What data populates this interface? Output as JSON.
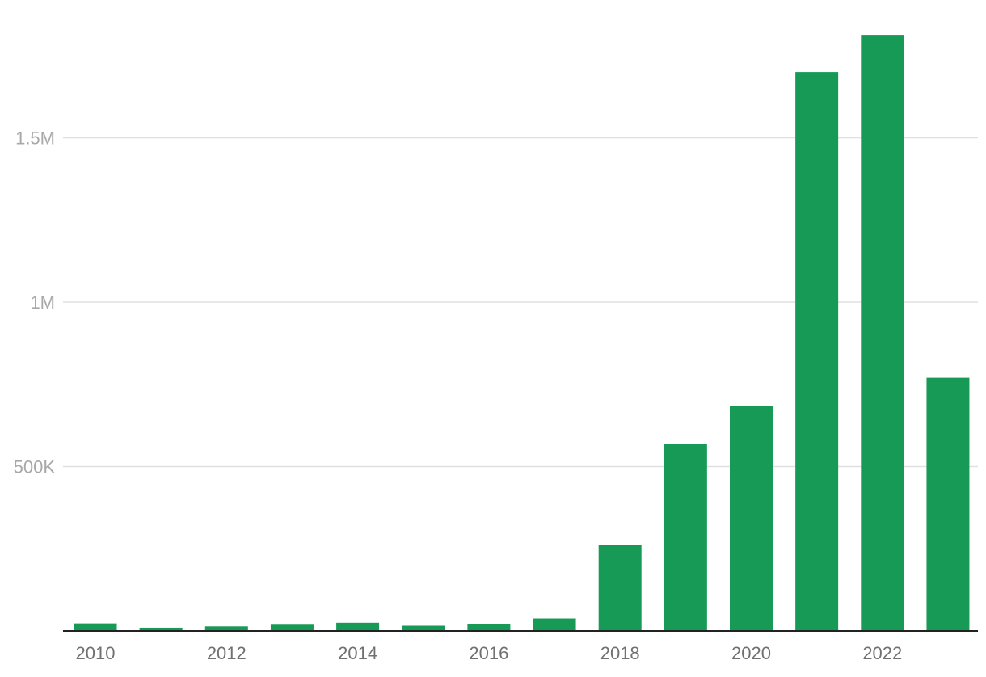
{
  "chart_data": {
    "type": "bar",
    "title": "",
    "xlabel": "",
    "ylabel": "",
    "categories": [
      "2010",
      "2011",
      "2012",
      "2013",
      "2014",
      "2015",
      "2016",
      "2017",
      "2018",
      "2019",
      "2020",
      "2021",
      "2022",
      "2023"
    ],
    "values": [
      23000,
      10000,
      14000,
      19000,
      25000,
      16000,
      22000,
      38000,
      262000,
      568000,
      684000,
      1700000,
      1813000,
      770000
    ],
    "ylim": [
      0,
      1850000
    ],
    "y_ticks": [
      {
        "value": 500000,
        "label": "500K"
      },
      {
        "value": 1000000,
        "label": "1M"
      },
      {
        "value": 1500000,
        "label": "1.5M"
      }
    ],
    "x_tick_labels": [
      "2010",
      "2012",
      "2014",
      "2016",
      "2018",
      "2020",
      "2022"
    ],
    "grid": true,
    "legend": "none",
    "bar_color": "#169a55"
  }
}
